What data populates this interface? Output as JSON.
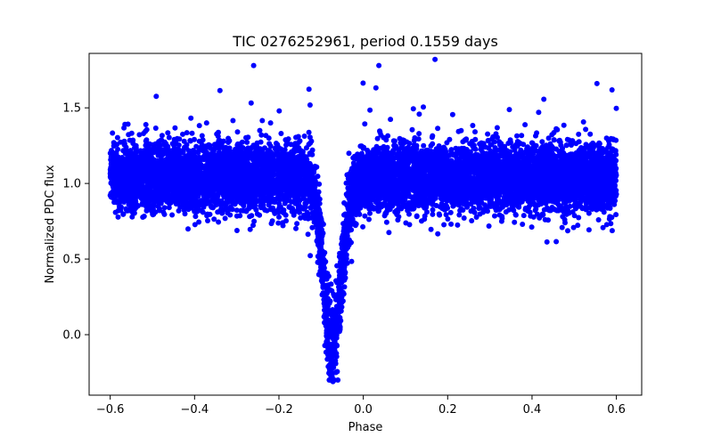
{
  "chart_data": {
    "type": "scatter",
    "title": "TIC 0276252961, period 0.1559 days",
    "xlabel": "Phase",
    "ylabel": "Normalized PDC flux",
    "xlim": [
      -0.65,
      0.66
    ],
    "ylim": [
      -0.4,
      1.86
    ],
    "xticks": [
      -0.6,
      -0.4,
      -0.2,
      0.0,
      0.2,
      0.4,
      0.6
    ],
    "xtick_labels": [
      "−0.6",
      "−0.4",
      "−0.2",
      "0.0",
      "0.2",
      "0.4",
      "0.6"
    ],
    "yticks": [
      0.0,
      0.5,
      1.0,
      1.5
    ],
    "ytick_labels": [
      "0.0",
      "0.5",
      "1.0",
      "1.5"
    ],
    "grid": false,
    "marker_color": "#0000ff",
    "model": {
      "baseline": 1.04,
      "scatter_sd": 0.11,
      "dip_center_phase": -0.075,
      "dip_min_flux": -0.08,
      "dip_half_width_phase": 0.04,
      "phase_range": [
        -0.6,
        0.6
      ],
      "n_points": 9000,
      "extreme_points": [
        {
          "x": -0.072,
          "y": -0.31
        },
        {
          "x": -0.065,
          "y": -0.25
        },
        {
          "x": 0.17,
          "y": 1.82
        },
        {
          "x": -0.26,
          "y": 1.78
        },
        {
          "x": 0.037,
          "y": 1.78
        }
      ]
    }
  }
}
